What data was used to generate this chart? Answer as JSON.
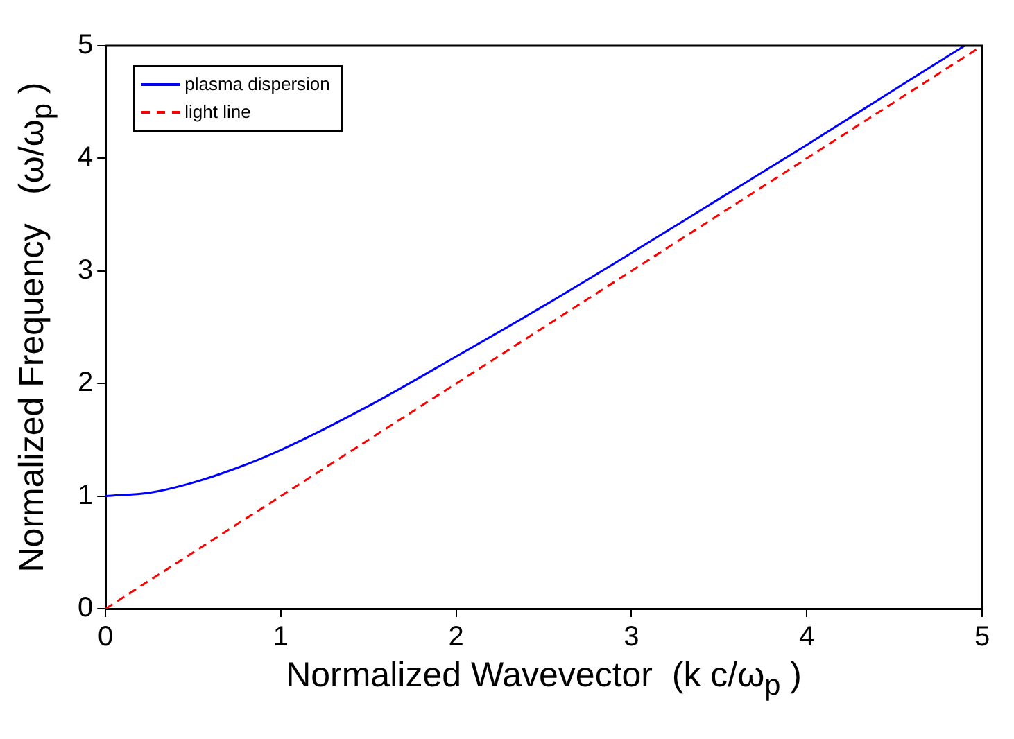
{
  "chart_data": {
    "type": "line",
    "xlabel": "Normalized Wavevector  (k c/ω$_{p}$ )",
    "ylabel": "Normalized Frequency   (ω/ω$_{p}$ )",
    "xlim": [
      0,
      5
    ],
    "ylim": [
      0,
      5
    ],
    "xticks": [
      0,
      1,
      2,
      3,
      4,
      5
    ],
    "yticks": [
      0,
      1,
      2,
      3,
      4,
      5
    ],
    "grid": false,
    "legend": "top left",
    "series": [
      {
        "name": "plasma dispersion",
        "color": "#0000ff",
        "line_style": "solid",
        "x": [
          0,
          0.25,
          0.5,
          0.75,
          1,
          1.5,
          2,
          2.5,
          3,
          3.5,
          4,
          4.5,
          4.9
        ],
        "values": [
          1,
          1.03,
          1.12,
          1.25,
          1.41,
          1.8,
          2.24,
          2.69,
          3.16,
          3.64,
          4.12,
          4.61,
          5
        ]
      },
      {
        "name": "light line",
        "color": "#ff0000",
        "line_style": "dashed",
        "x": [
          0,
          5
        ],
        "values": [
          0,
          5
        ]
      }
    ]
  }
}
